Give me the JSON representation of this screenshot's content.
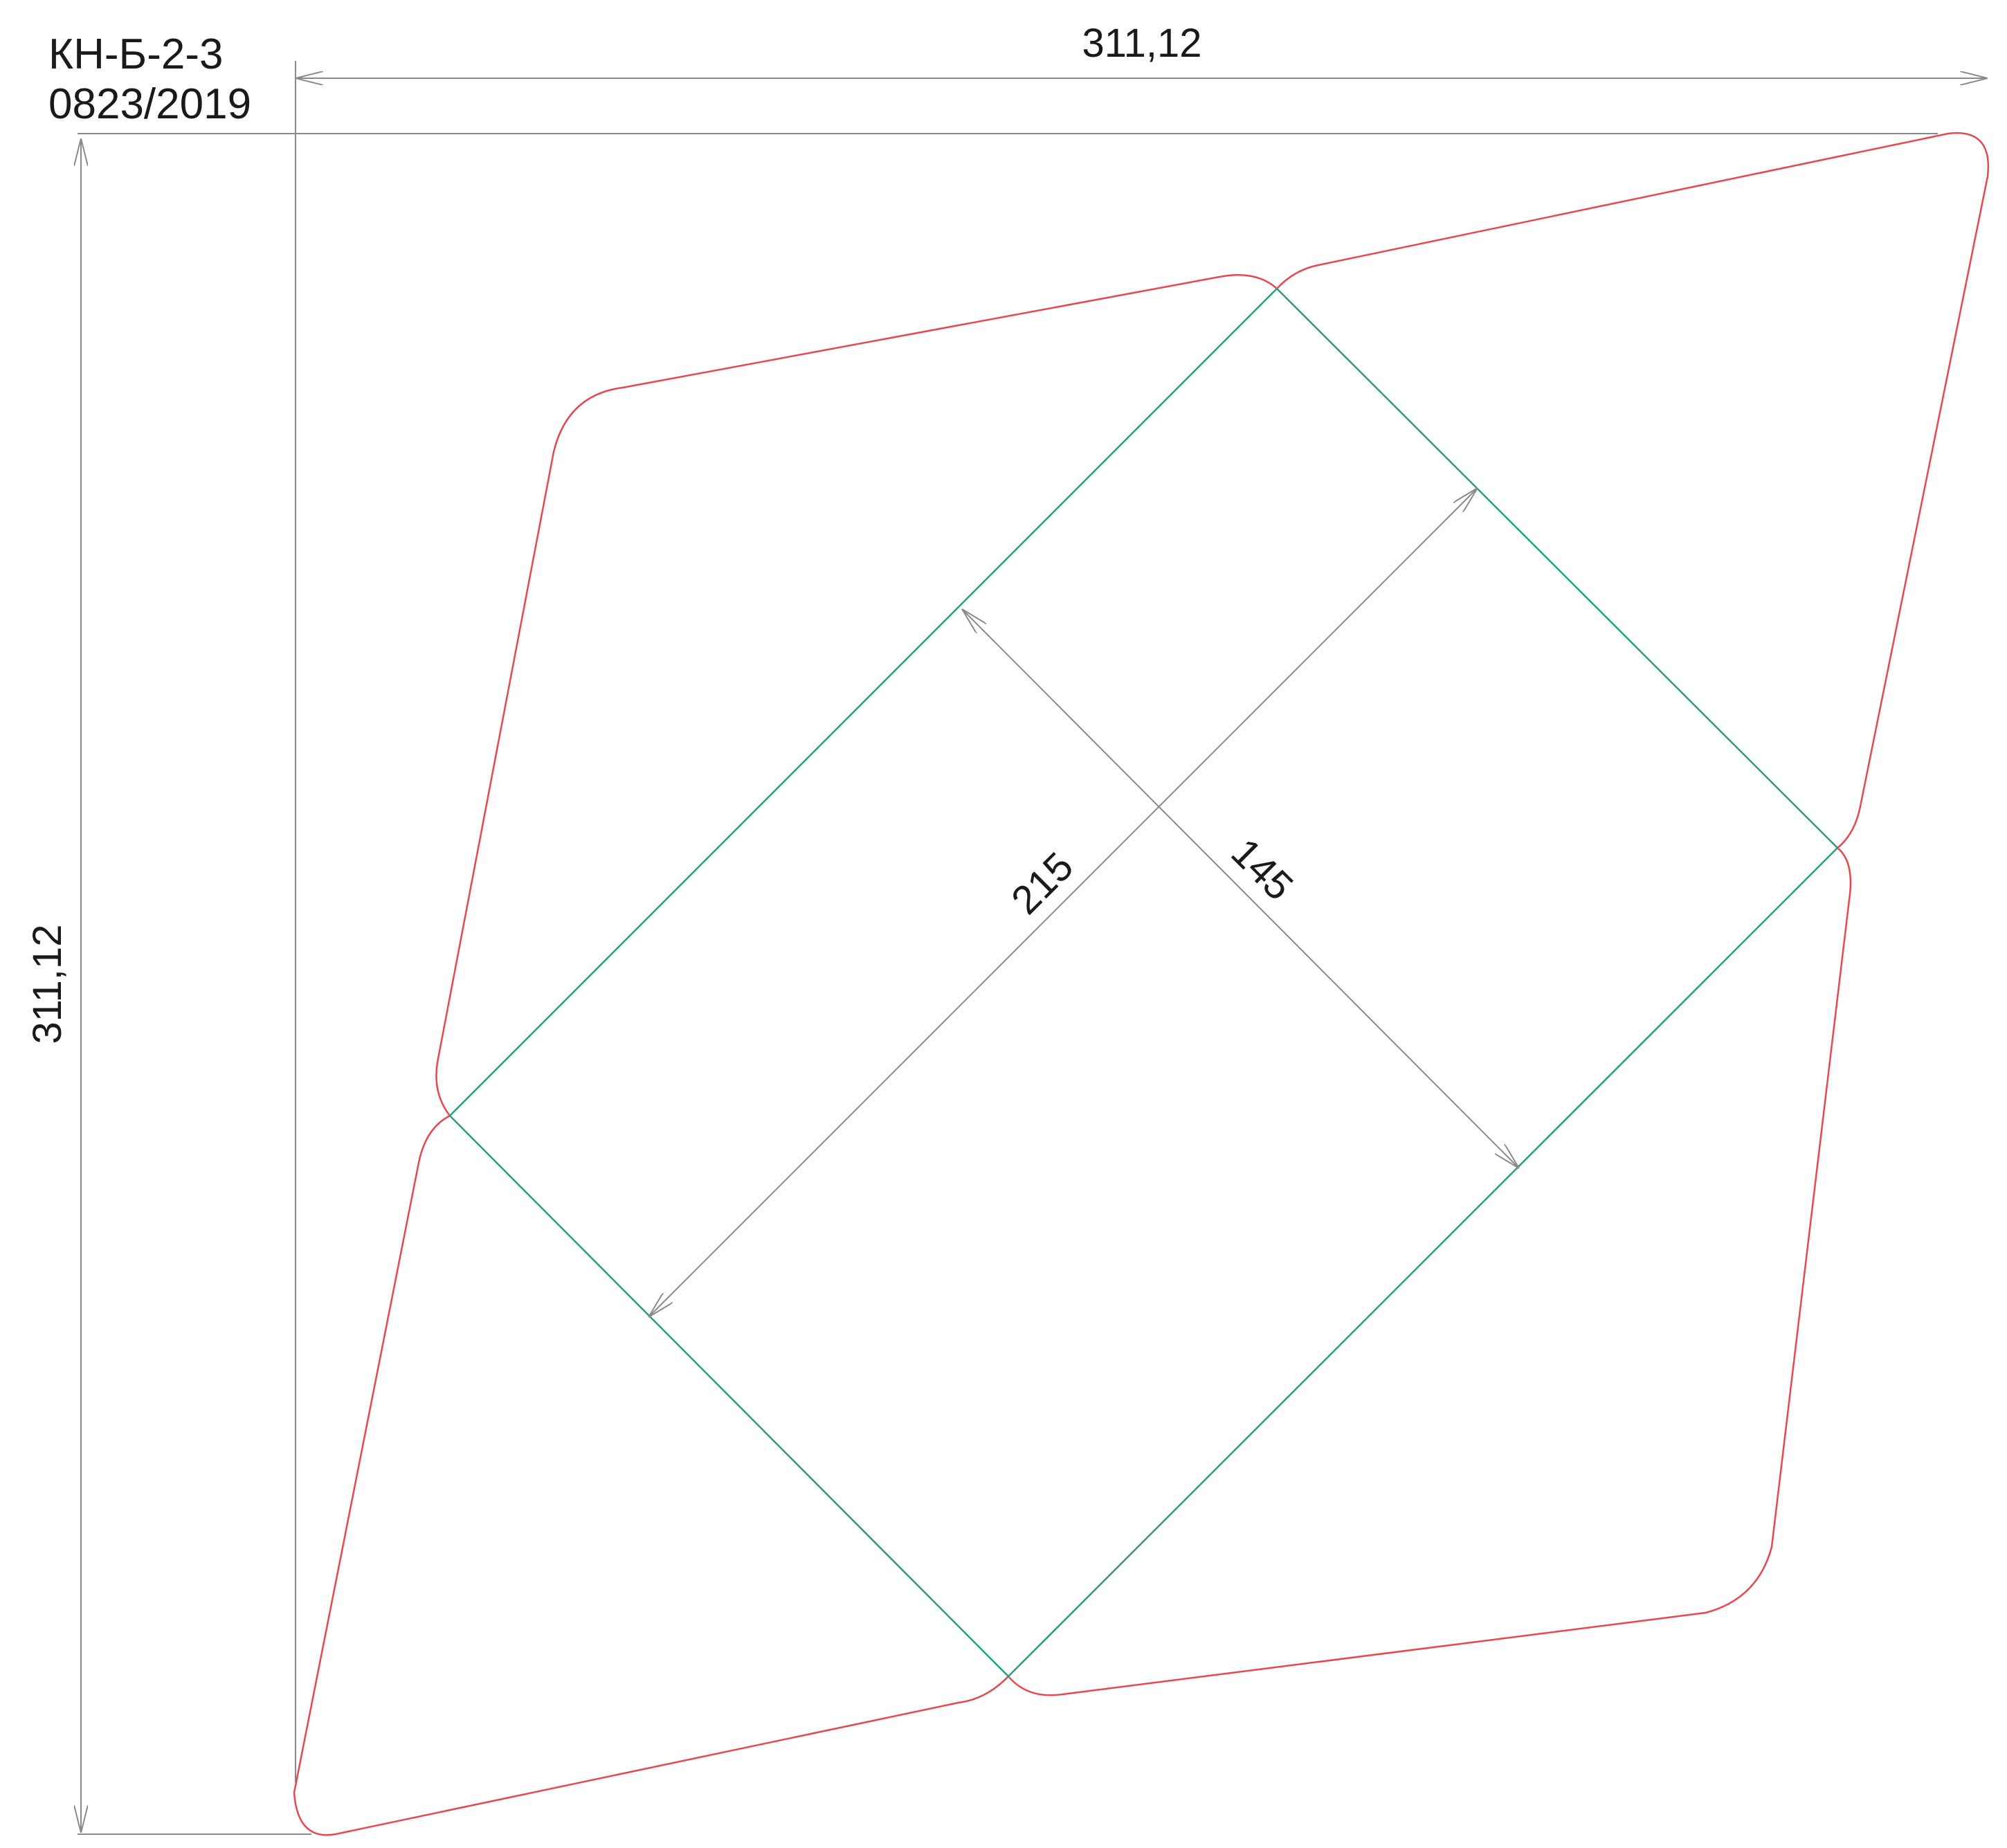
{
  "title": {
    "code": "КН-Б-2-3",
    "number": "0823/2019"
  },
  "dimensions": {
    "overall_width": "311,12",
    "overall_height": "311,12",
    "inner_length": "215",
    "inner_width": "145"
  },
  "colors": {
    "cut_line": "#e8474f",
    "fold_line": "#2a9d7a",
    "dimension_line": "#8a8a8a",
    "text": "#1a1a1a"
  }
}
